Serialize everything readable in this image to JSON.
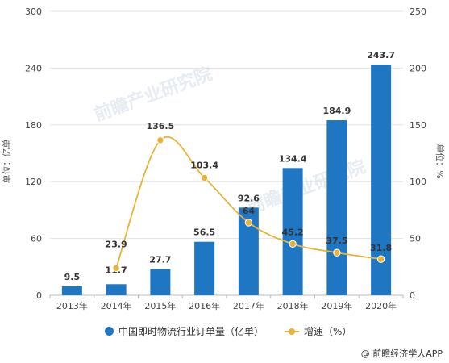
{
  "chart_data": {
    "type": "bar+line",
    "categories": [
      "2013年",
      "2014年",
      "2015年",
      "2016年",
      "2017年",
      "2018年",
      "2019年",
      "2020年"
    ],
    "series": [
      {
        "name": "中国即时物流行业订单量（亿单）",
        "type": "bar",
        "axis": "left",
        "color": "#1f77c4",
        "values": [
          9.5,
          11.7,
          27.7,
          56.5,
          92.6,
          134.4,
          184.9,
          243.7
        ],
        "labels": [
          "9.5",
          "11.7",
          "27.7",
          "56.5",
          "92.6",
          "134.4",
          "184.9",
          "243.7"
        ]
      },
      {
        "name": "增速（%）",
        "type": "line",
        "axis": "right",
        "color": "#e8b338",
        "values": [
          null,
          23.9,
          136.5,
          103.4,
          64,
          45.2,
          37.5,
          31.8
        ],
        "labels": [
          "",
          "23.9",
          "136.5",
          "103.4",
          "64",
          "45.2",
          "37.5",
          "31.8"
        ]
      }
    ],
    "y_left": {
      "label": "单位：亿单",
      "ylim": [
        0,
        300
      ],
      "ticks": [
        "0",
        "60",
        "120",
        "180",
        "240",
        "300"
      ]
    },
    "y_right": {
      "label": "单位：%",
      "ylim": [
        0,
        250
      ],
      "ticks": [
        "0",
        "50",
        "100",
        "150",
        "200",
        "250"
      ]
    },
    "grid": true,
    "legend_position": "bottom",
    "watermark": "前瞻产业研究院"
  },
  "legend": {
    "bar_label": "中国即时物流行业订单量（亿单）",
    "line_label": "增速（%）"
  },
  "source": "@ 前瞻经济学人APP",
  "colors": {
    "bar": "#1f77c4",
    "line": "#e8b338"
  }
}
